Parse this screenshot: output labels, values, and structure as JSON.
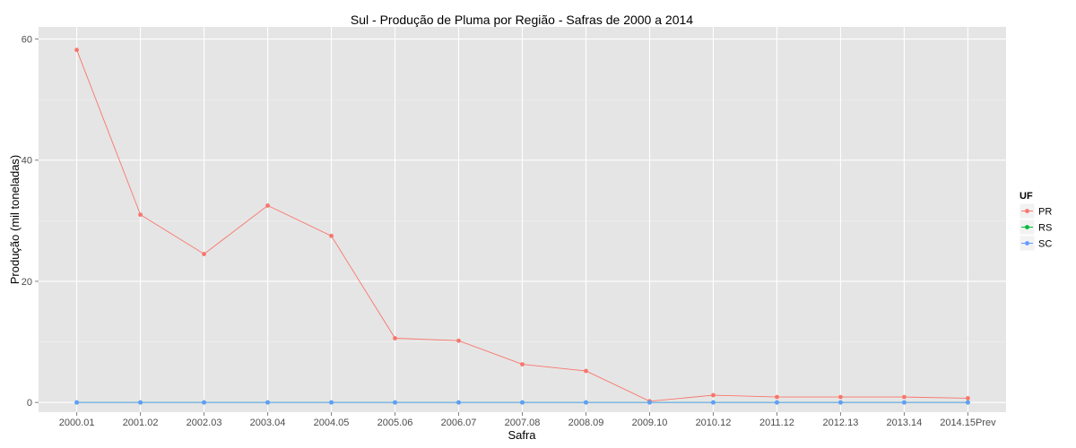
{
  "chart_data": {
    "type": "line",
    "title": "Sul  - Produção de Pluma por Região - Safras de 2000 a 2014",
    "xlabel": "Safra",
    "ylabel": "Produção (mil toneladas)",
    "categories": [
      "2000.01",
      "2001.02",
      "2002.03",
      "2003.04",
      "2004.05",
      "2005.06",
      "2006.07",
      "2007.08",
      "2008.09",
      "2009.10",
      "2010.12",
      "2011.12",
      "2012.13",
      "2013.14",
      "2014.15Prev"
    ],
    "ylim": [
      -1.6,
      62
    ],
    "yticks": [
      0,
      20,
      40,
      60
    ],
    "grid": true,
    "legend_title": "UF",
    "legend_position": "right",
    "series": [
      {
        "name": "PR",
        "color": "#F8766D",
        "values": [
          58.2,
          31.0,
          24.5,
          32.5,
          27.5,
          10.6,
          10.2,
          6.3,
          5.2,
          0.2,
          1.2,
          0.9,
          0.9,
          0.9,
          0.7
        ]
      },
      {
        "name": "RS",
        "color": "#00BA38",
        "values": [
          0,
          0,
          0,
          0,
          0,
          0,
          0,
          0,
          0,
          0,
          0,
          0,
          0,
          0,
          0
        ]
      },
      {
        "name": "SC",
        "color": "#619CFF",
        "values": [
          0,
          0,
          0,
          0,
          0,
          0,
          0,
          0,
          0,
          0,
          0,
          0,
          0,
          0,
          0
        ]
      }
    ]
  }
}
